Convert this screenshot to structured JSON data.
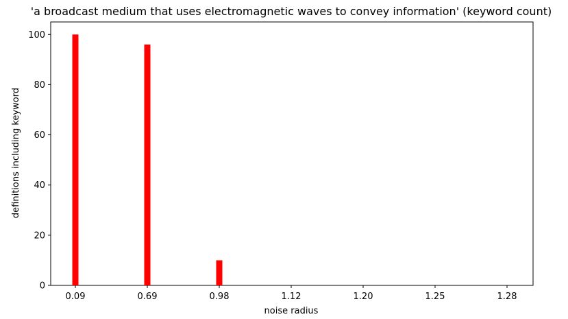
{
  "chart_data": {
    "type": "bar",
    "title": "'a broadcast medium that uses electromagnetic waves to convey information' (keyword count)",
    "xlabel": "noise radius",
    "ylabel": "definitions including keyword",
    "categories": [
      "0.09",
      "0.69",
      "0.98",
      "1.12",
      "1.20",
      "1.25",
      "1.28"
    ],
    "values": [
      100,
      96,
      10,
      0,
      0,
      0,
      0
    ],
    "yticks": [
      0,
      20,
      40,
      60,
      80,
      100
    ],
    "ylim": [
      0,
      105
    ],
    "bar_color": "#ff0000",
    "grid": false,
    "legend": "none"
  }
}
